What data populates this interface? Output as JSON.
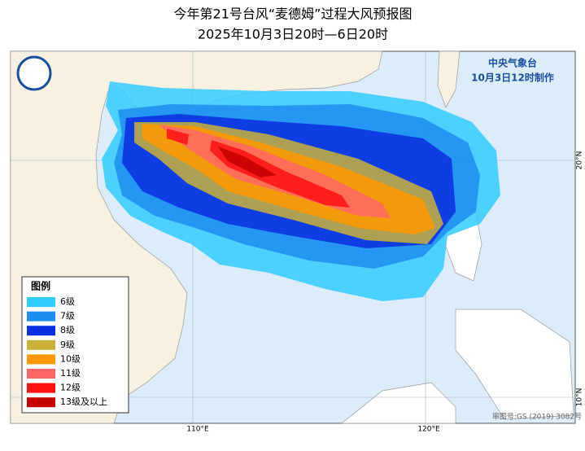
{
  "header": {
    "title": "今年第21号台风“麦德姆”过程大风预报图",
    "subtitle": "2025年10月3日20时—6日20时"
  },
  "issuer": {
    "name": "中央气象台",
    "time": "10月3日12时制作"
  },
  "legend": {
    "title": "图例",
    "items": [
      {
        "label": "6级",
        "color": "#33ccff"
      },
      {
        "label": "7级",
        "color": "#1e8cf0"
      },
      {
        "label": "8级",
        "color": "#0b2fe0"
      },
      {
        "label": "9级",
        "color": "#c9b13a"
      },
      {
        "label": "10级",
        "color": "#ff9900"
      },
      {
        "label": "11级",
        "color": "#ff6666"
      },
      {
        "label": "12级",
        "color": "#ff1010"
      },
      {
        "label": "13级及以上",
        "color": "#c40000"
      }
    ]
  },
  "axes": {
    "lon": [
      "110°E",
      "120°E"
    ],
    "lat": [
      "20°N",
      "10°N"
    ]
  },
  "review_number": "审图号:GS (2019) 3082号"
}
